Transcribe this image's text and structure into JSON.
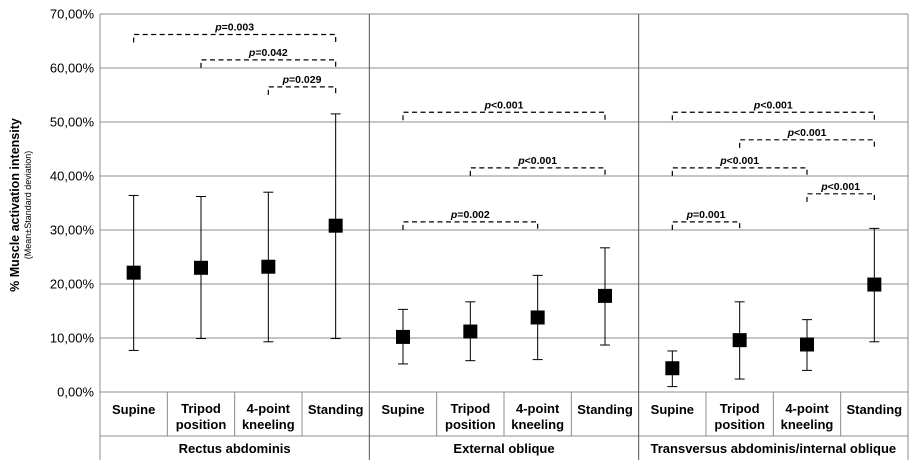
{
  "chart_data": {
    "type": "scatter",
    "ylabel": "% Muscle activation intensity",
    "ylabel_sub": "(Mean±Standard deviation)",
    "ylim": [
      0,
      70
    ],
    "yticks": [
      {
        "value": 0,
        "label": "0,00%"
      },
      {
        "value": 10,
        "label": "10,00%"
      },
      {
        "value": 20,
        "label": "20,00%"
      },
      {
        "value": 30,
        "label": "30,00%"
      },
      {
        "value": 40,
        "label": "40,00%"
      },
      {
        "value": 50,
        "label": "50,00%"
      },
      {
        "value": 60,
        "label": "60,00%"
      },
      {
        "value": 70,
        "label": "70,00%"
      }
    ],
    "grid": true,
    "legend": "none",
    "groups": [
      {
        "name": "Rectus abdominis",
        "categories": [
          [
            "Supine"
          ],
          [
            "Tripod",
            "position"
          ],
          [
            "4-point",
            "kneeling"
          ],
          [
            "Standing"
          ]
        ],
        "means": [
          22.1,
          23.0,
          23.2,
          30.8
        ],
        "lower": [
          7.7,
          9.9,
          9.3,
          9.9
        ],
        "upper": [
          36.4,
          36.2,
          37.0,
          51.5
        ],
        "comparisons": [
          {
            "from": 0,
            "to": 3,
            "y": 66.2,
            "p_label": "p",
            "p_value": "=0.003"
          },
          {
            "from": 1,
            "to": 3,
            "y": 61.5,
            "p_label": "p",
            "p_value": "=0.042"
          },
          {
            "from": 2,
            "to": 3,
            "y": 56.5,
            "p_label": "p",
            "p_value": "=0.029"
          }
        ]
      },
      {
        "name": "External oblique",
        "categories": [
          [
            "Supine"
          ],
          [
            "Tripod",
            "position"
          ],
          [
            "4-point",
            "kneeling"
          ],
          [
            "Standing"
          ]
        ],
        "means": [
          10.2,
          11.2,
          13.8,
          17.8
        ],
        "lower": [
          5.2,
          5.8,
          6.0,
          8.7
        ],
        "upper": [
          15.3,
          16.7,
          21.6,
          26.7
        ],
        "comparisons": [
          {
            "from": 0,
            "to": 3,
            "y": 51.8,
            "p_label": "p",
            "p_value": "<0.001"
          },
          {
            "from": 1,
            "to": 3,
            "y": 41.5,
            "p_label": "p",
            "p_value": "<0.001"
          },
          {
            "from": 0,
            "to": 2,
            "y": 31.5,
            "p_label": "p",
            "p_value": "=0.002"
          }
        ]
      },
      {
        "name": "Transversus abdominis/internal oblique",
        "categories": [
          [
            "Supine"
          ],
          [
            "Tripod",
            "position"
          ],
          [
            "4-point",
            "kneeling"
          ],
          [
            "Standing"
          ]
        ],
        "means": [
          4.4,
          9.6,
          8.8,
          19.9
        ],
        "lower": [
          1.0,
          2.4,
          4.0,
          9.3
        ],
        "upper": [
          7.6,
          16.7,
          13.4,
          30.3
        ],
        "comparisons": [
          {
            "from": 0,
            "to": 3,
            "y": 51.8,
            "p_label": "p",
            "p_value": "<0.001"
          },
          {
            "from": 1,
            "to": 3,
            "y": 46.7,
            "p_label": "p",
            "p_value": "<0.001"
          },
          {
            "from": 0,
            "to": 2,
            "y": 41.5,
            "p_label": "p",
            "p_value": "<0.001"
          },
          {
            "from": 2,
            "to": 3,
            "y": 36.7,
            "p_label": "p",
            "p_value": "<0.001"
          },
          {
            "from": 0,
            "to": 1,
            "y": 31.5,
            "p_label": "p",
            "p_value": "=0.001"
          }
        ]
      }
    ]
  }
}
